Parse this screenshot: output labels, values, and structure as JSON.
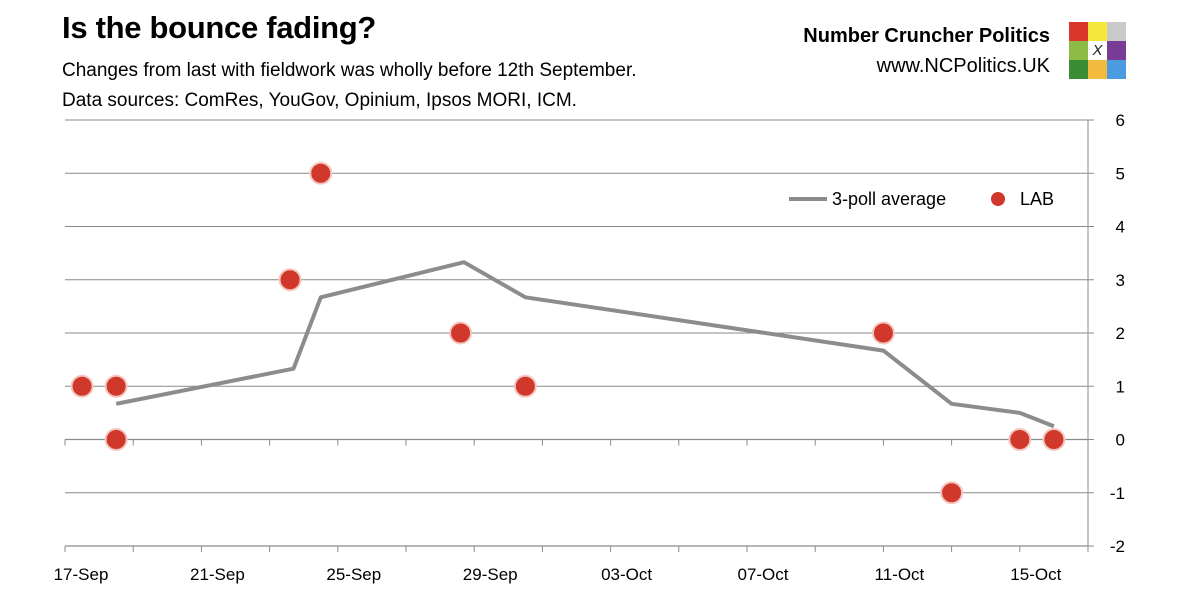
{
  "header": {
    "title": "Is the bounce fading?",
    "subtitle1": "Changes from last with fieldwork was wholly before 12th September.",
    "subtitle2": "Data sources: ComRes, YouGov, Opinium, Ipsos MORI, ICM."
  },
  "branding": {
    "name": "Number Cruncher Politics",
    "url": "www.NCPolitics.UK",
    "logo_mark": "X",
    "logo_colors": [
      "#d9352a",
      "#f4e93b",
      "#c9c9c9",
      "#8dbb45",
      "#ffffff",
      "#7a3b97",
      "#3a8c35",
      "#f2bb3d",
      "#4a9be0"
    ]
  },
  "chart_data": {
    "type": "scatter",
    "x_axis": {
      "min": 0,
      "max": 30,
      "tick_values": [
        0,
        4,
        8,
        12,
        16,
        20,
        24,
        28
      ],
      "tick_labels": [
        "17-Sep",
        "21-Sep",
        "25-Sep",
        "29-Sep",
        "03-Oct",
        "07-Oct",
        "11-Oct",
        "15-Oct"
      ],
      "unit_note": "days from 17-Sep"
    },
    "y_axis": {
      "min": -2,
      "max": 6,
      "position": "right",
      "ticks": [
        -2,
        -1,
        0,
        1,
        2,
        3,
        4,
        5,
        6
      ]
    },
    "grid": true,
    "legend": {
      "position": "top-right",
      "entries": [
        "3-poll average",
        "LAB"
      ]
    },
    "series": [
      {
        "name": "3-poll average",
        "kind": "line",
        "color": "#8c8c8c",
        "points": [
          [
            1.5,
            0.67
          ],
          [
            6.7,
            1.33
          ],
          [
            7.5,
            2.67
          ],
          [
            11.7,
            3.33
          ],
          [
            13.5,
            2.67
          ],
          [
            24,
            1.67
          ],
          [
            26,
            0.67
          ],
          [
            28,
            0.5
          ],
          [
            29,
            0.25
          ]
        ]
      },
      {
        "name": "LAB",
        "kind": "scatter",
        "color": "#d0382b",
        "points": [
          [
            0.5,
            1
          ],
          [
            1.5,
            1
          ],
          [
            1.5,
            0
          ],
          [
            6.6,
            3
          ],
          [
            7.5,
            5
          ],
          [
            11.6,
            2
          ],
          [
            13.5,
            1
          ],
          [
            24,
            2
          ],
          [
            26,
            -1
          ],
          [
            28,
            0
          ],
          [
            29,
            0
          ]
        ]
      }
    ]
  }
}
